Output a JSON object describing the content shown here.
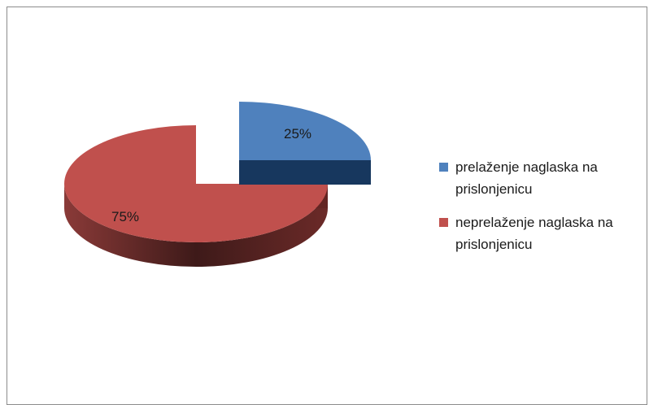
{
  "chart_data": {
    "type": "pie",
    "style": "3d-exploded",
    "series": [
      {
        "name": "prelaženje naglaska na prislonjenicu",
        "value": 25,
        "label": "25%",
        "color": "#4f81bd",
        "side_color": "#17375e"
      },
      {
        "name": "neprelaženje naglaska na prislonjenicu",
        "value": 75,
        "label": "75%",
        "color": "#c0504d",
        "side_color": "#632523"
      }
    ],
    "legend_position": "right"
  }
}
